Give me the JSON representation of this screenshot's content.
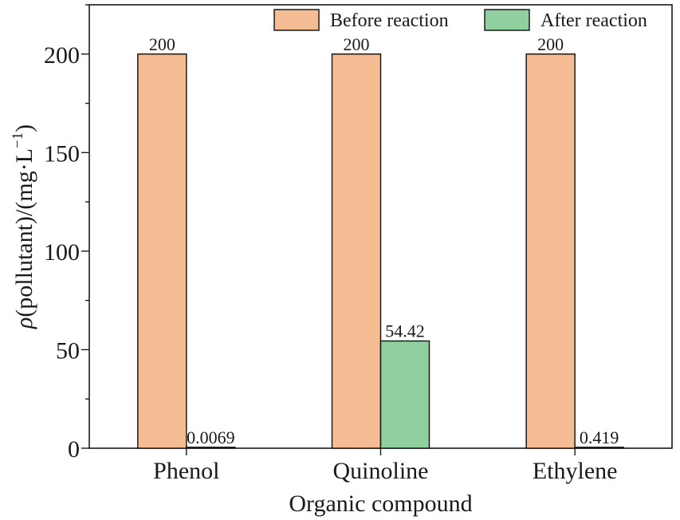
{
  "chart_data": {
    "type": "bar",
    "title": "",
    "xlabel": "Organic compound",
    "ylabel": {
      "rho": "ρ",
      "text": "(pollutant)/(mg·L",
      "sup": "−1",
      "close": ")"
    },
    "categories": [
      "Phenol",
      "Quinoline",
      "Ethylene"
    ],
    "series": [
      {
        "name": "Before reaction",
        "values": [
          200,
          200,
          200
        ],
        "labels": [
          "200",
          "200",
          "200"
        ],
        "color": "#F6BC93"
      },
      {
        "name": "After reaction",
        "values": [
          0.0069,
          54.42,
          0.419
        ],
        "labels": [
          "0.0069",
          "54.42",
          "0.419"
        ],
        "color": "#8FCFA0"
      }
    ],
    "ylim": [
      0,
      225
    ],
    "yticks": [
      0,
      50,
      100,
      150,
      200
    ],
    "ytick_labels": [
      "0",
      "50",
      "100",
      "150",
      "200"
    ],
    "grid": false,
    "legend_position": "top"
  }
}
